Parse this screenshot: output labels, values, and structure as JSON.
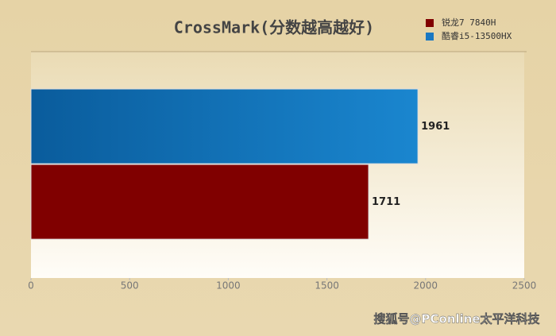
{
  "chart_data": {
    "type": "hbar",
    "title": "CrossMark(分数越高越好)",
    "categories": [
      null
    ],
    "series": [
      {
        "name": "锐龙7 7840H",
        "color": "#800000",
        "values": [
          1711
        ]
      },
      {
        "name": "酷睿i5-13500HX",
        "color": "#1a78c2",
        "values": [
          1961
        ]
      }
    ],
    "xlim": [
      0,
      2500
    ],
    "xticks": [
      0,
      500,
      1000,
      1500,
      2000,
      2500
    ],
    "grid": false,
    "legend": "top-right",
    "watermark": "搜狐号@PConline太平洋科技"
  }
}
